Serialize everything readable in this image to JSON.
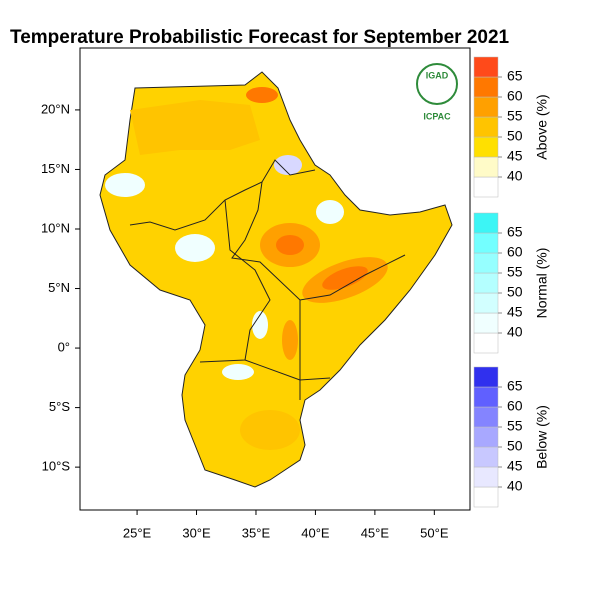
{
  "map": {
    "title": "Temperature Probabilistic Forecast for September 2021",
    "xlim": [
      20.2,
      53
    ],
    "ylim": [
      -13.6,
      25.2
    ],
    "xticks": [
      {
        "value": 25,
        "label": "25°E"
      },
      {
        "value": 30,
        "label": "30°E"
      },
      {
        "value": 35,
        "label": "35°E"
      },
      {
        "value": 40,
        "label": "40°E"
      },
      {
        "value": 45,
        "label": "45°E"
      },
      {
        "value": 50,
        "label": "50°E"
      }
    ],
    "yticks": [
      {
        "value": 20,
        "label": "20°N"
      },
      {
        "value": 15,
        "label": "15°N"
      },
      {
        "value": 10,
        "label": "10°N"
      },
      {
        "value": 5,
        "label": "5°N"
      },
      {
        "value": 0,
        "label": "0°"
      },
      {
        "value": -5,
        "label": "5°S"
      },
      {
        "value": -10,
        "label": "10°S"
      }
    ],
    "logo": {
      "name": "IGAD",
      "subtitle": "ICPAC"
    },
    "legends": [
      {
        "title": "Above (%)",
        "ticks": [
          40,
          45,
          50,
          55,
          60,
          65
        ],
        "colors": [
          "#ffffff",
          "#fffbc8",
          "#ffe000",
          "#ffc400",
          "#ffa000",
          "#ff7800",
          "#ff4a1a"
        ]
      },
      {
        "title": "Normal (%)",
        "ticks": [
          40,
          45,
          50,
          55,
          60,
          65
        ],
        "colors": [
          "#ffffff",
          "#f0ffff",
          "#d2ffff",
          "#b4ffff",
          "#96ffff",
          "#73ffff",
          "#3cf5f5"
        ]
      },
      {
        "title": "Below (%)",
        "ticks": [
          40,
          45,
          50,
          55,
          60,
          65
        ],
        "colors": [
          "#ffffff",
          "#e8e8ff",
          "#c8c8ff",
          "#a8a8ff",
          "#8484ff",
          "#6060ff",
          "#3030ee"
        ]
      }
    ]
  }
}
